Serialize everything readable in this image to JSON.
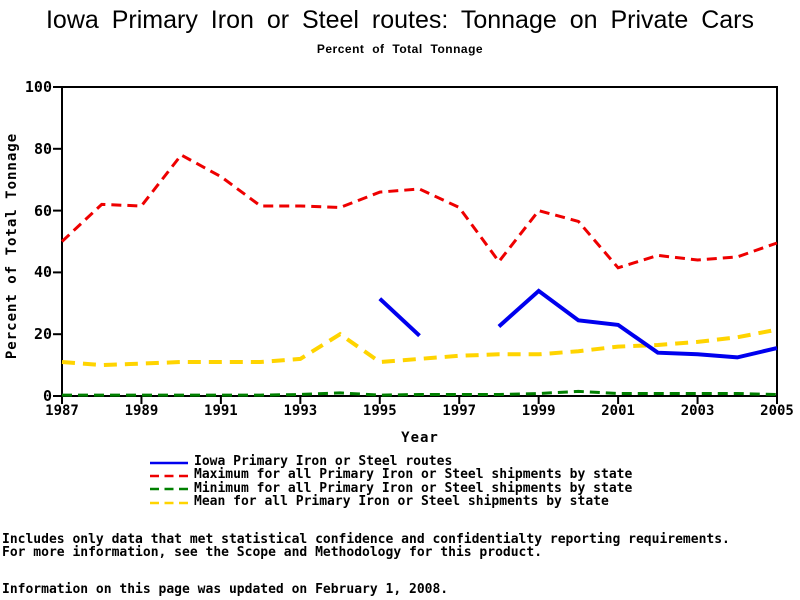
{
  "title": "Iowa Primary Iron or Steel routes: Tonnage on Private Cars",
  "subtitle": "Percent of Total Tonnage",
  "chart_data": {
    "type": "line",
    "x": [
      1987,
      1988,
      1989,
      1990,
      1991,
      1992,
      1993,
      1994,
      1995,
      1996,
      1997,
      1998,
      1999,
      2000,
      2001,
      2002,
      2003,
      2004,
      2005
    ],
    "xlabel": "Year",
    "ylabel": "Percent of Total Tonnage",
    "ylim": [
      0,
      100
    ],
    "xlim": [
      1987,
      2005
    ],
    "y_ticks": [
      0,
      20,
      40,
      60,
      80,
      100
    ],
    "x_ticks": [
      1987,
      1989,
      1991,
      1993,
      1995,
      1997,
      1999,
      2001,
      2003,
      2005
    ],
    "grid": false,
    "legend_position": "bottom",
    "frame_color": "#000000",
    "series": [
      {
        "name": "Iowa Primary Iron or Steel routes",
        "color": "#0000ee",
        "dash": "",
        "width": 4,
        "values": [
          null,
          null,
          null,
          null,
          null,
          null,
          null,
          null,
          31.5,
          19.5,
          null,
          22.5,
          34,
          24.5,
          23,
          14,
          13.5,
          12.5,
          15.5
        ]
      },
      {
        "name": "Maximum for all Primary Iron or Steel shipments by state",
        "color": "#ee0000",
        "dash": "10,6",
        "width": 3,
        "values": [
          50,
          62,
          61.5,
          78,
          71,
          61.5,
          61.5,
          61,
          66,
          67,
          61,
          43.5,
          60,
          56.5,
          41.5,
          45.5,
          44,
          45,
          49.5
        ]
      },
      {
        "name": "Minimum for all Primary Iron or Steel shipments by state",
        "color": "#008000",
        "dash": "10,6",
        "width": 3,
        "values": [
          0.3,
          0.3,
          0.3,
          0.3,
          0.3,
          0.3,
          0.5,
          1,
          0.3,
          0.5,
          0.5,
          0.5,
          0.8,
          1.5,
          0.8,
          0.8,
          0.8,
          0.8,
          0.5
        ]
      },
      {
        "name": "Mean for all Primary Iron or Steel shipments by state",
        "color": "#ffd400",
        "dash": "13,8",
        "width": 4,
        "values": [
          11,
          10,
          10.5,
          11,
          11,
          11,
          12,
          20,
          11,
          12,
          13,
          13.5,
          13.5,
          14.5,
          16,
          16.5,
          17.5,
          19,
          21.5
        ]
      }
    ]
  },
  "footnotes": {
    "line1": "Includes only data that met statistical confidence and confidentialty reporting requirements.",
    "line2": "For more information, see the Scope and Methodology for this product.",
    "updated": "Information on this page was updated on February 1, 2008."
  }
}
